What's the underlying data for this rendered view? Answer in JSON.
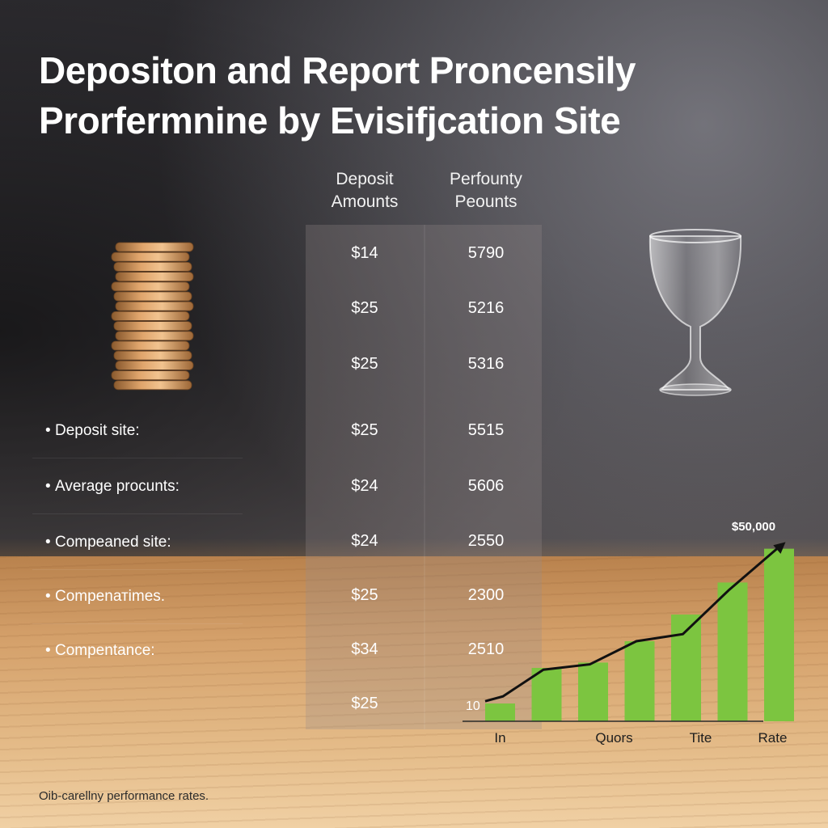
{
  "title": {
    "line1": "Depositon and Report Proncensily",
    "line2": "Prorfermnine by Evisifjcation Site"
  },
  "table": {
    "columns": [
      "Deposit\nAmounts",
      "Perfounty\nPeounts"
    ],
    "deposit_amounts": [
      "$14",
      "$25",
      "$25",
      "$25",
      "$24",
      "$24",
      "$25",
      "$34",
      "$25"
    ],
    "perfounty_peounts": [
      "5790",
      "5216",
      "5316",
      "5515",
      "5606",
      "2550",
      "2300",
      "2510",
      ""
    ]
  },
  "bullets": [
    "Deposit site:",
    "Average procunts:",
    "Compeaned site:",
    "Compenатimes.",
    "Compentance:"
  ],
  "footnote": "Oib-carellny performance rates.",
  "icons": {
    "coins": "coin-stack-icon",
    "glass": "wine-glass-icon"
  },
  "colors": {
    "bar": "#7cc540",
    "trend_line": "#111111",
    "text": "#ffffff"
  },
  "chart_data": {
    "type": "bar",
    "categories": [
      "In",
      "",
      "Quors",
      "",
      "Tite",
      "",
      "Rate"
    ],
    "values": [
      10,
      30,
      33,
      45,
      60,
      78,
      97
    ],
    "trend": [
      14,
      29,
      32,
      45,
      49,
      74,
      98
    ],
    "peak_label": "$50,000",
    "start_label": "10",
    "ylim": [
      0,
      110
    ]
  }
}
